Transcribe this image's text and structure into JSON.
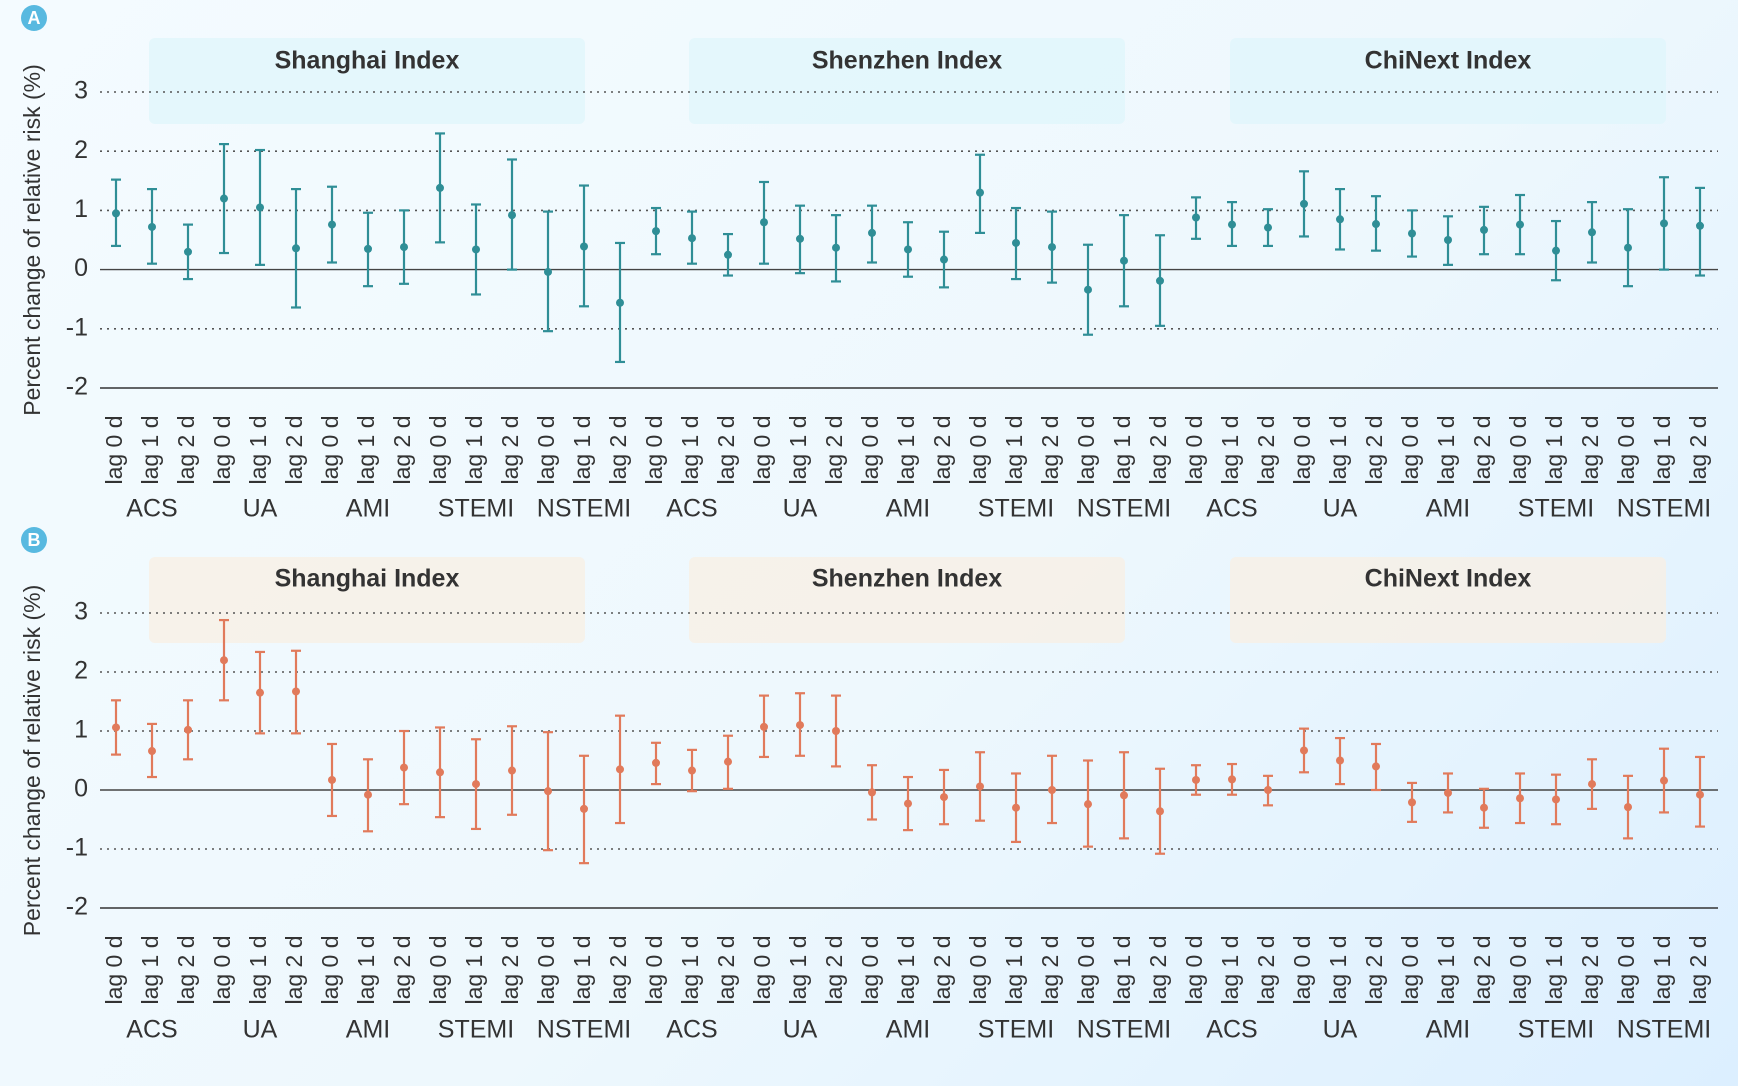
{
  "chart_data": [
    {
      "type": "scatter",
      "panel_label": "A",
      "ylabel": "Percent change of relative risk (%)",
      "ylim": [
        -2,
        3
      ],
      "yticks": [
        "3",
        "2",
        "1",
        "0",
        "-1",
        "-2"
      ],
      "yticks_values": [
        3,
        2,
        1,
        0,
        -1,
        -2
      ],
      "grid": "dotted horizontal",
      "color": "#2f8e96",
      "indices": [
        "Shanghai Index",
        "Shenzhen Index",
        "ChiNext Index"
      ],
      "outcomes": [
        "ACS",
        "UA",
        "AMI",
        "STEMI",
        "NSTEMI"
      ],
      "lags": [
        "lag 0 d",
        "lag 1 d",
        "lag 2 d"
      ],
      "series": [
        {
          "name": "Shanghai Index",
          "estimate": [
            0.95,
            0.72,
            0.3,
            1.2,
            1.05,
            0.36,
            0.76,
            0.35,
            0.38,
            1.38,
            0.34,
            0.92,
            -0.04,
            0.39,
            -0.56
          ],
          "lower": [
            0.4,
            0.1,
            -0.16,
            0.28,
            0.08,
            -0.64,
            0.12,
            -0.28,
            -0.24,
            0.46,
            -0.42,
            0.0,
            -1.04,
            -0.62,
            -1.56
          ],
          "upper": [
            1.52,
            1.36,
            0.76,
            2.12,
            2.02,
            1.36,
            1.4,
            0.96,
            1.0,
            2.3,
            1.1,
            1.86,
            0.98,
            1.42,
            0.45
          ]
        },
        {
          "name": "Shenzhen Index",
          "estimate": [
            0.65,
            0.53,
            0.25,
            0.8,
            0.52,
            0.37,
            0.62,
            0.34,
            0.17,
            1.3,
            0.45,
            0.38,
            -0.34,
            0.15,
            -0.19
          ],
          "lower": [
            0.26,
            0.1,
            -0.1,
            0.1,
            -0.06,
            -0.2,
            0.12,
            -0.12,
            -0.3,
            0.62,
            -0.16,
            -0.22,
            -1.1,
            -0.62,
            -0.95
          ],
          "upper": [
            1.04,
            0.98,
            0.6,
            1.48,
            1.08,
            0.92,
            1.08,
            0.8,
            0.64,
            1.94,
            1.04,
            0.98,
            0.42,
            0.92,
            0.58
          ]
        },
        {
          "name": "ChiNext Index",
          "estimate": [
            0.88,
            0.76,
            0.71,
            1.11,
            0.85,
            0.77,
            0.61,
            0.5,
            0.67,
            0.76,
            0.32,
            0.63,
            0.37,
            0.78,
            0.74
          ],
          "lower": [
            0.52,
            0.4,
            0.4,
            0.56,
            0.34,
            0.32,
            0.22,
            0.08,
            0.26,
            0.26,
            -0.18,
            0.12,
            -0.28,
            0.0,
            -0.1
          ],
          "upper": [
            1.22,
            1.14,
            1.02,
            1.66,
            1.36,
            1.24,
            1.0,
            0.9,
            1.06,
            1.26,
            0.82,
            1.14,
            1.02,
            1.56,
            1.38
          ]
        }
      ]
    },
    {
      "type": "scatter",
      "panel_label": "B",
      "ylabel": "Percent change of relative risk (%)",
      "ylim": [
        -2,
        3
      ],
      "yticks": [
        "3",
        "2",
        "1",
        "0",
        "-1",
        "-2"
      ],
      "yticks_values": [
        3,
        2,
        1,
        0,
        -1,
        -2
      ],
      "grid": "dotted horizontal",
      "color": "#e17a5b",
      "indices": [
        "Shanghai Index",
        "Shenzhen Index",
        "ChiNext Index"
      ],
      "outcomes": [
        "ACS",
        "UA",
        "AMI",
        "STEMI",
        "NSTEMI"
      ],
      "lags": [
        "lag 0 d",
        "lag 1 d",
        "lag 2 d"
      ],
      "series": [
        {
          "name": "Shanghai Index",
          "estimate": [
            1.06,
            0.66,
            1.02,
            2.2,
            1.65,
            1.67,
            0.17,
            -0.08,
            0.38,
            0.3,
            0.1,
            0.33,
            -0.02,
            -0.32,
            0.35
          ],
          "lower": [
            0.6,
            0.22,
            0.52,
            1.52,
            0.96,
            0.96,
            -0.44,
            -0.7,
            -0.24,
            -0.46,
            -0.66,
            -0.42,
            -1.02,
            -1.24,
            -0.56
          ],
          "upper": [
            1.52,
            1.12,
            1.52,
            2.88,
            2.34,
            2.36,
            0.78,
            0.52,
            1.0,
            1.06,
            0.86,
            1.08,
            0.98,
            0.58,
            1.26
          ]
        },
        {
          "name": "Shenzhen Index",
          "estimate": [
            0.46,
            0.33,
            0.48,
            1.07,
            1.1,
            1.0,
            -0.04,
            -0.23,
            -0.12,
            0.06,
            -0.3,
            0.0,
            -0.24,
            -0.09,
            -0.36
          ],
          "lower": [
            0.1,
            -0.02,
            0.02,
            0.56,
            0.58,
            0.4,
            -0.5,
            -0.68,
            -0.58,
            -0.52,
            -0.88,
            -0.56,
            -0.96,
            -0.82,
            -1.08
          ],
          "upper": [
            0.8,
            0.68,
            0.92,
            1.6,
            1.64,
            1.6,
            0.42,
            0.22,
            0.34,
            0.64,
            0.28,
            0.58,
            0.5,
            0.64,
            0.36
          ]
        },
        {
          "name": "ChiNext Index",
          "estimate": [
            0.17,
            0.18,
            0.0,
            0.67,
            0.5,
            0.4,
            -0.21,
            -0.05,
            -0.3,
            -0.14,
            -0.16,
            0.1,
            -0.29,
            0.16,
            -0.08
          ],
          "lower": [
            -0.08,
            -0.08,
            -0.26,
            0.3,
            0.1,
            0.0,
            -0.54,
            -0.38,
            -0.64,
            -0.56,
            -0.58,
            -0.32,
            -0.82,
            -0.38,
            -0.62
          ],
          "upper": [
            0.42,
            0.44,
            0.24,
            1.04,
            0.88,
            0.78,
            0.12,
            0.28,
            0.02,
            0.28,
            0.26,
            0.52,
            0.24,
            0.7,
            0.56
          ]
        }
      ]
    }
  ]
}
